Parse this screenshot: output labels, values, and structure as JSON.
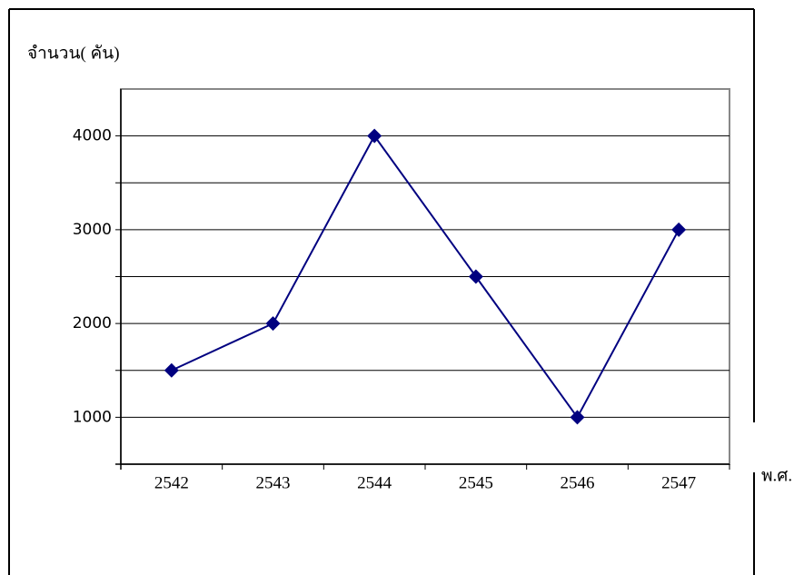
{
  "chart_data": {
    "type": "line",
    "y_axis_label": "จำนวน( คัน)",
    "x_axis_label": "พ.ศ.",
    "categories": [
      "2542",
      "2543",
      "2544",
      "2545",
      "2546",
      "2547"
    ],
    "values": [
      1500,
      2000,
      4000,
      2500,
      1000,
      3000
    ],
    "color": "#000080",
    "ylim": [
      500,
      4500
    ],
    "yticks": [
      1000,
      2000,
      3000,
      4000
    ],
    "minor_yticks": [
      1500,
      2500,
      3500
    ],
    "grid": true
  }
}
